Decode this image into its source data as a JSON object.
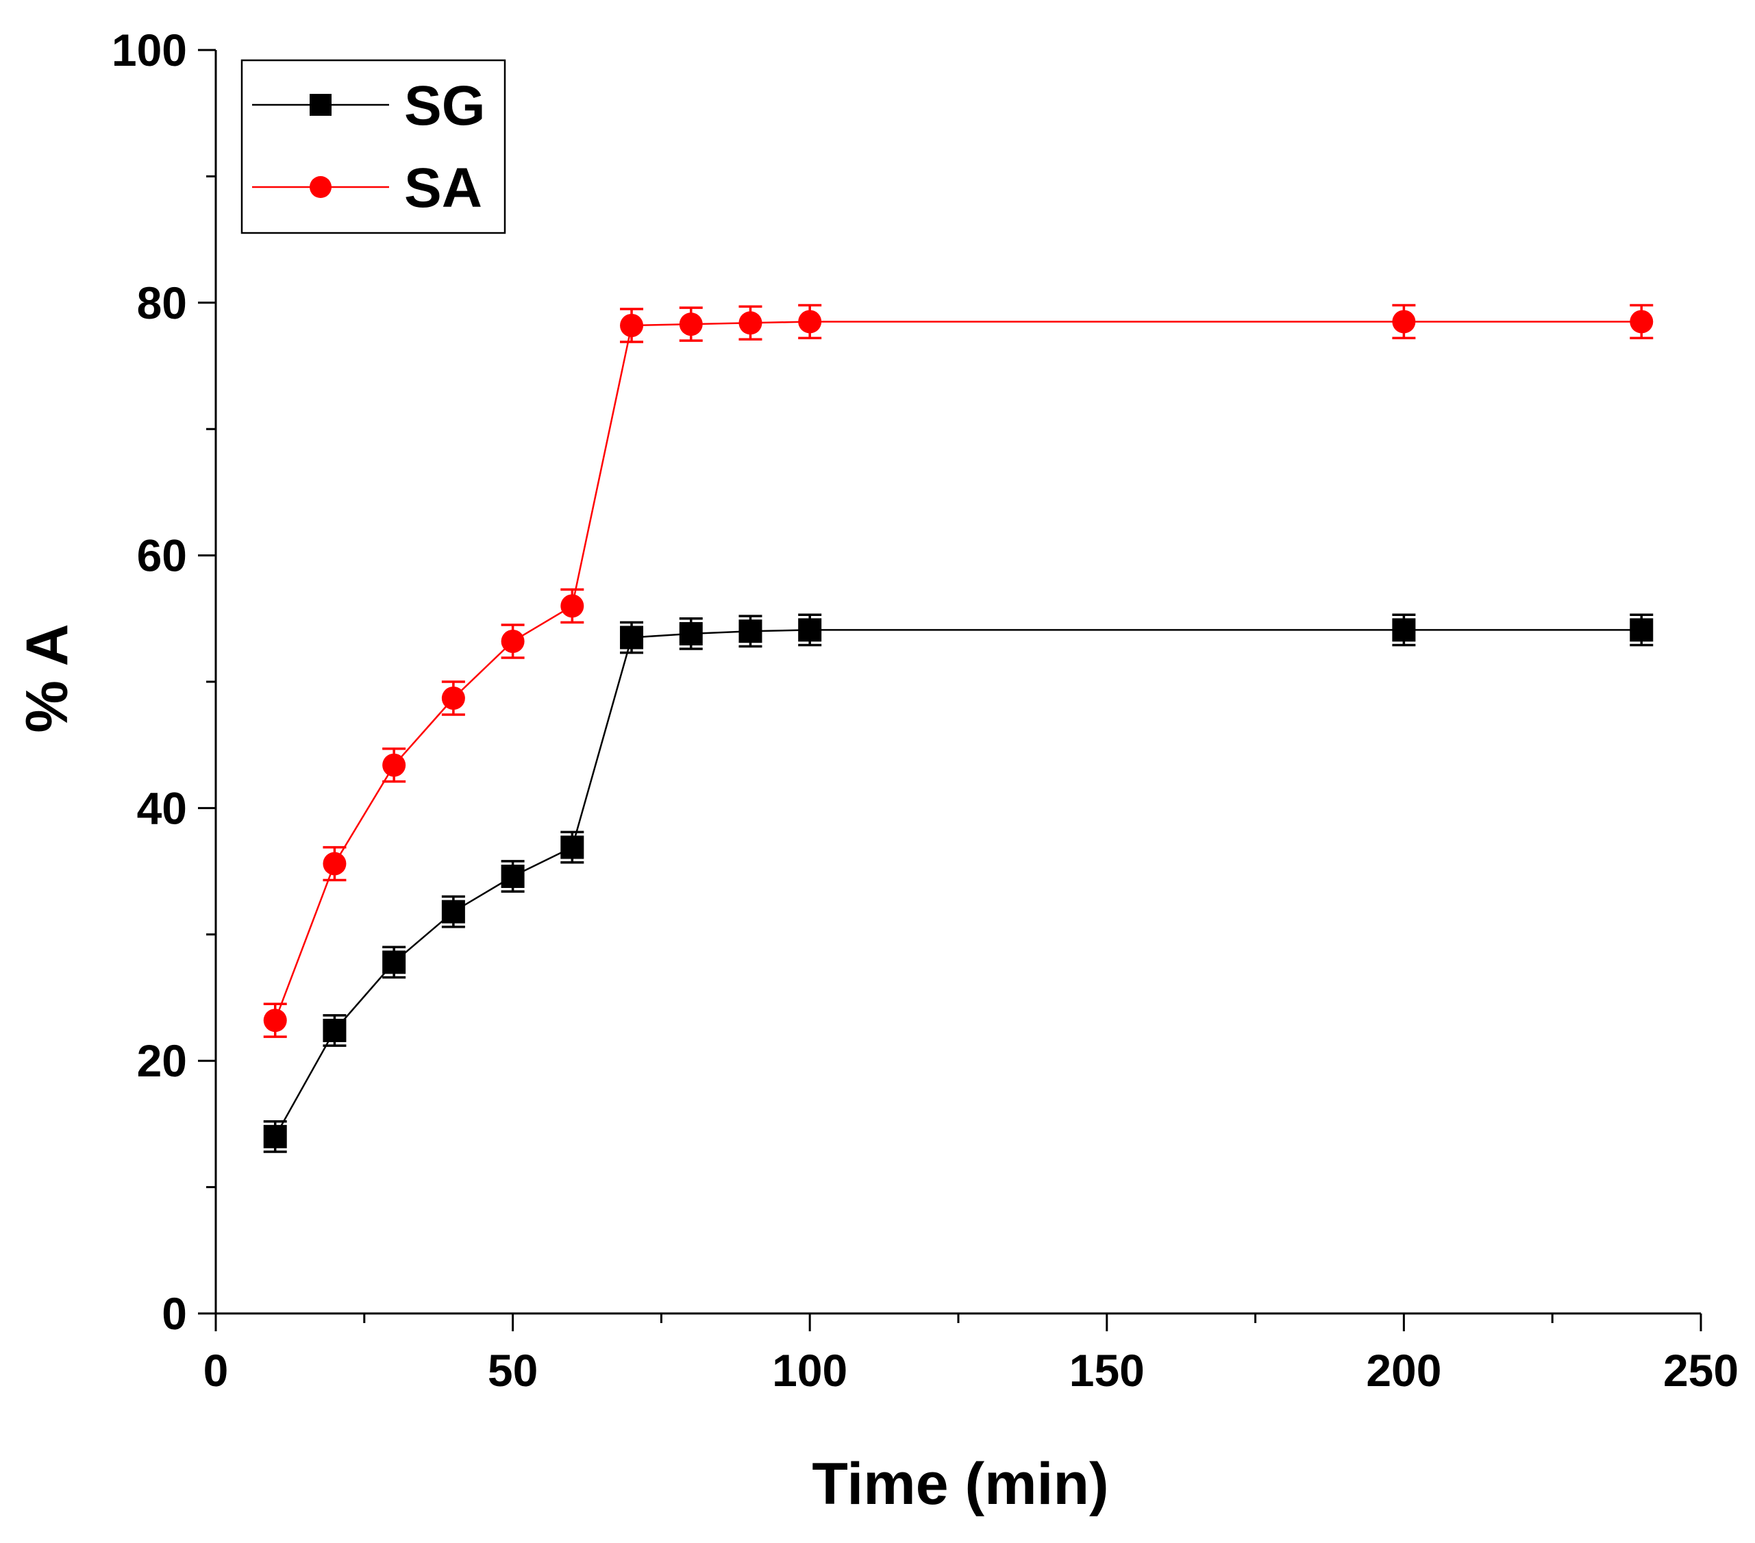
{
  "chart_data": {
    "type": "line",
    "title": "",
    "xlabel": "Time (min)",
    "ylabel": "% A",
    "xlim": [
      0,
      250
    ],
    "ylim": [
      0,
      100
    ],
    "x_major_ticks": [
      0,
      50,
      100,
      150,
      200,
      250
    ],
    "x_tick_labels": [
      "0",
      "50",
      "100",
      "150",
      "200",
      "250"
    ],
    "x_minor_ticks": [
      25,
      75,
      125,
      175,
      225
    ],
    "y_major_ticks": [
      0,
      20,
      40,
      60,
      80,
      100
    ],
    "y_tick_labels": [
      "0",
      "20",
      "40",
      "60",
      "80",
      "100"
    ],
    "y_minor_ticks": [
      10,
      30,
      50,
      70,
      90
    ],
    "grid": false,
    "legend": {
      "position": "top-left"
    },
    "series": [
      {
        "name": "SG",
        "color": "#000000",
        "marker": "square",
        "x": [
          10,
          20,
          30,
          40,
          50,
          60,
          70,
          80,
          90,
          100,
          200,
          240
        ],
        "y": [
          14.0,
          22.4,
          27.8,
          31.8,
          34.6,
          36.9,
          53.5,
          53.8,
          54.0,
          54.1,
          54.1,
          54.1
        ],
        "error": [
          1.2,
          1.2,
          1.2,
          1.2,
          1.2,
          1.2,
          1.2,
          1.2,
          1.2,
          1.2,
          1.2,
          1.2
        ]
      },
      {
        "name": "SA",
        "color": "#ff0000",
        "marker": "circle",
        "x": [
          10,
          20,
          30,
          40,
          50,
          60,
          70,
          80,
          90,
          100,
          200,
          240
        ],
        "y": [
          23.2,
          35.6,
          43.4,
          48.7,
          53.2,
          56.0,
          78.2,
          78.3,
          78.4,
          78.5,
          78.5,
          78.5
        ],
        "error": [
          1.3,
          1.3,
          1.3,
          1.3,
          1.3,
          1.3,
          1.3,
          1.3,
          1.3,
          1.3,
          1.3,
          1.3
        ]
      }
    ]
  }
}
